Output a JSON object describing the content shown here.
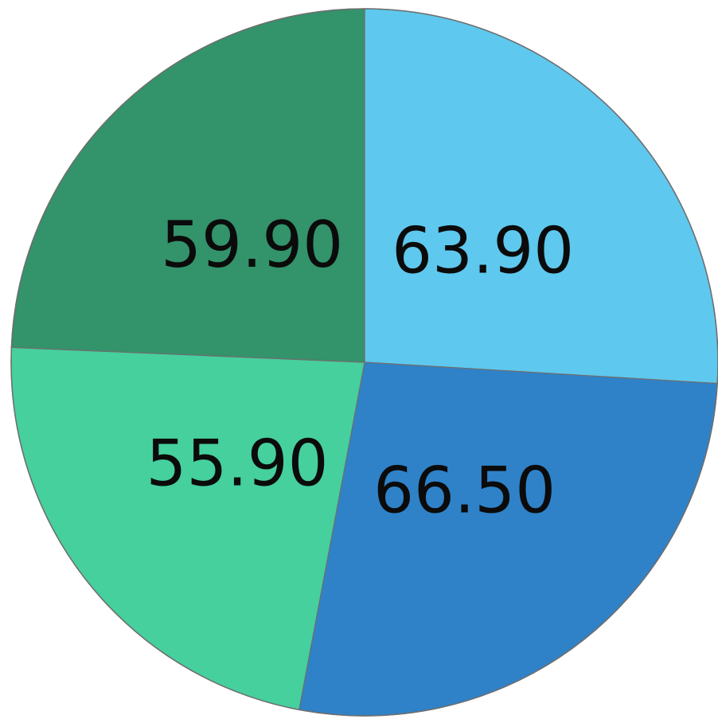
{
  "chart_data": {
    "type": "pie",
    "start_angle_deg": 0,
    "direction": "clockwise",
    "slices": [
      {
        "value": 63.9,
        "label": "63.90",
        "color": "#5ec8ee"
      },
      {
        "value": 66.5,
        "label": "66.50",
        "color": "#2f82c8"
      },
      {
        "value": 55.9,
        "label": "55.90",
        "color": "#45d09e"
      },
      {
        "value": 59.9,
        "label": "59.90",
        "color": "#33936a"
      }
    ]
  }
}
